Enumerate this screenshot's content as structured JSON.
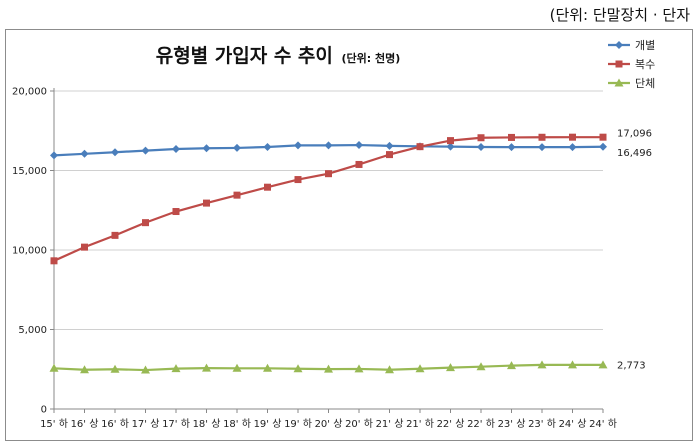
{
  "unit_note": "(단위: 단말장치 · 단자",
  "chart_data": {
    "type": "line",
    "title": "유형별 가입자 수 추이",
    "title_suffix": "(단위: 천명)",
    "xlabel": "",
    "ylabel": "",
    "ylim": [
      0,
      20000
    ],
    "y_ticks": [
      "0",
      "5,000",
      "10,000",
      "15,000",
      "20,000"
    ],
    "grid": "horizontal",
    "legend_position": "top-right",
    "categories": [
      "15' 하",
      "16' 상",
      "16' 하",
      "17' 상",
      "17' 하",
      "18' 상",
      "18' 하",
      "19' 상",
      "19' 하",
      "20' 상",
      "20' 하",
      "21' 상",
      "21' 하",
      "22' 상",
      "22' 하",
      "23' 상",
      "23' 하",
      "24' 상",
      "24' 하"
    ],
    "series": [
      {
        "name": "개별",
        "color": "#4a7ebb",
        "marker": "diamond",
        "values": [
          15950,
          16050,
          16150,
          16250,
          16350,
          16400,
          16420,
          16480,
          16580,
          16580,
          16600,
          16550,
          16520,
          16500,
          16480,
          16470,
          16470,
          16470,
          16496
        ],
        "end_label": "16,496"
      },
      {
        "name": "복수",
        "color": "#be4b48",
        "marker": "square",
        "values": [
          9320,
          10180,
          10920,
          11720,
          12420,
          12950,
          13450,
          13950,
          14430,
          14800,
          15380,
          16000,
          16500,
          16880,
          17060,
          17080,
          17090,
          17096,
          17096
        ],
        "end_label": "17,096"
      },
      {
        "name": "단체",
        "color": "#98b954",
        "marker": "triangle",
        "values": [
          2560,
          2470,
          2500,
          2450,
          2540,
          2570,
          2560,
          2560,
          2530,
          2510,
          2520,
          2470,
          2530,
          2600,
          2660,
          2730,
          2773,
          2773,
          2773
        ],
        "end_label": "2,773"
      }
    ]
  }
}
